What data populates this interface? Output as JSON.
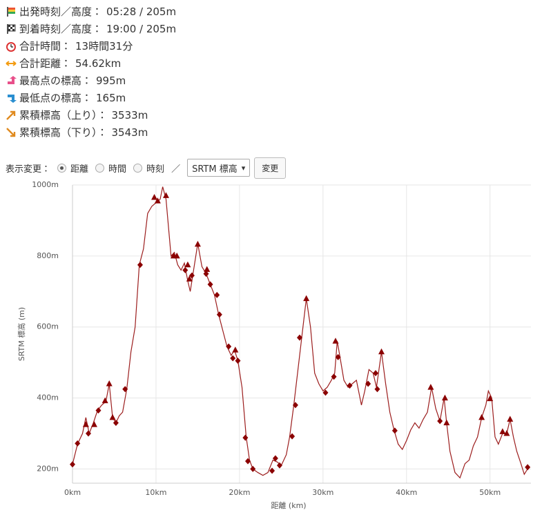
{
  "info": [
    {
      "label": "出発時刻／高度：",
      "value": "05:28 / 205m"
    },
    {
      "label": "到着時刻／高度：",
      "value": "19:00 / 205m"
    },
    {
      "label": "合計時間：",
      "value": "13時間31分"
    },
    {
      "label": "合計距離：",
      "value": "54.62km"
    },
    {
      "label": "最高点の標高：",
      "value": "995m"
    },
    {
      "label": "最低点の標高：",
      "value": "165m"
    },
    {
      "label": "累積標高（上り）：",
      "value": "3533m"
    },
    {
      "label": "累積標高（下り）：",
      "value": "3543m"
    }
  ],
  "controls": {
    "label": "表示変更：",
    "options": [
      "距離",
      "時間",
      "時刻"
    ],
    "separator": "／",
    "select": "SRTM 標高",
    "button": "変更"
  },
  "chart_data": {
    "type": "line",
    "x_label": "距離 (km)",
    "y_label": "SRTM 標高 (m)",
    "color": "#9b1c1c",
    "marker_color": "#8b0000",
    "grid": true,
    "xlim": [
      0,
      54.9
    ],
    "ylim": [
      160,
      1000
    ],
    "xticks": [
      {
        "value": 0,
        "label": "0km"
      },
      {
        "value": 10,
        "label": "10km"
      },
      {
        "value": 20,
        "label": "20km"
      },
      {
        "value": 30,
        "label": "30km"
      },
      {
        "value": 40,
        "label": "40km"
      },
      {
        "value": 50,
        "label": "50km"
      }
    ],
    "yticks": [
      {
        "value": 200,
        "label": "200m"
      },
      {
        "value": 400,
        "label": "400m"
      },
      {
        "value": 600,
        "label": "600m"
      },
      {
        "value": 800,
        "label": "800m"
      },
      {
        "value": 1000,
        "label": "1000m"
      }
    ],
    "x": [
      0,
      0.6,
      1.2,
      1.6,
      2,
      2.5,
      3,
      3.5,
      4,
      4.4,
      4.8,
      5.2,
      5.6,
      6,
      6.5,
      7,
      7.5,
      8,
      8.5,
      9,
      9.5,
      10,
      10.5,
      10.8,
      11.2,
      11.5,
      11.8,
      12.2,
      12.6,
      13,
      13.4,
      13.8,
      14.1,
      14.5,
      15,
      15.5,
      16,
      16.5,
      17,
      17.5,
      18,
      18.5,
      19,
      19.4,
      19.8,
      20.3,
      20.8,
      21.2,
      21.6,
      22.2,
      22.8,
      23.4,
      24,
      24.5,
      25,
      25.6,
      26,
      26.5,
      27,
      27.5,
      28,
      28.5,
      29,
      29.5,
      30,
      30.5,
      31,
      31.4,
      31.7,
      32,
      32.5,
      33,
      33.5,
      34,
      34.6,
      35,
      35.5,
      36,
      36.4,
      37,
      37.5,
      38,
      38.5,
      39,
      39.5,
      40,
      40.5,
      41,
      41.5,
      42,
      42.5,
      43,
      43.5,
      44,
      44.5,
      44.8,
      45.2,
      45.8,
      46.4,
      47,
      47.5,
      48,
      48.5,
      49,
      49.5,
      49.8,
      50.2,
      50.6,
      51,
      51.5,
      52,
      52.4,
      52.8,
      53.2,
      53.7,
      54.1,
      54.62
    ],
    "values": [
      213,
      270,
      300,
      345,
      300,
      330,
      365,
      380,
      390,
      440,
      345,
      330,
      350,
      360,
      425,
      530,
      600,
      775,
      820,
      920,
      940,
      950,
      960,
      995,
      960,
      880,
      800,
      810,
      775,
      760,
      780,
      730,
      700,
      760,
      835,
      770,
      750,
      720,
      690,
      635,
      590,
      545,
      520,
      535,
      505,
      430,
      290,
      225,
      200,
      190,
      182,
      190,
      225,
      220,
      210,
      240,
      290,
      380,
      480,
      580,
      680,
      600,
      470,
      440,
      420,
      430,
      450,
      470,
      560,
      520,
      450,
      430,
      440,
      450,
      380,
      420,
      480,
      470,
      430,
      530,
      440,
      360,
      310,
      270,
      255,
      280,
      310,
      330,
      315,
      340,
      360,
      430,
      370,
      335,
      400,
      330,
      250,
      190,
      175,
      215,
      225,
      265,
      290,
      345,
      380,
      420,
      400,
      290,
      270,
      300,
      300,
      340,
      290,
      250,
      215,
      185,
      205
    ],
    "diamond_markers": {
      "x": [
        0,
        0.6,
        1.9,
        3.1,
        5.2,
        6.3,
        8.1,
        13.5,
        14.3,
        16,
        16.5,
        17.3,
        17.6,
        18.7,
        19.2,
        19.8,
        20.7,
        21,
        21.6,
        23.9,
        24.3,
        24.8,
        26.3,
        26.7,
        27.2,
        30.3,
        31.3,
        31.8,
        33.2,
        35.4,
        36.3,
        36.5,
        38.6,
        44,
        54.5
      ],
      "values": [
        213,
        272,
        300,
        365,
        330,
        425,
        775,
        760,
        745,
        750,
        720,
        690,
        635,
        545,
        512,
        505,
        288,
        222,
        200,
        195,
        230,
        210,
        292,
        380,
        570,
        415,
        460,
        515,
        435,
        440,
        470,
        425,
        308,
        335,
        205
      ]
    },
    "triangle_markers": {
      "x": [
        1.6,
        2.6,
        3.9,
        4.4,
        4.8,
        9.8,
        10.2,
        11.2,
        12.1,
        12.5,
        13.8,
        14,
        15,
        16.1,
        19.5,
        28,
        31.5,
        37,
        42.9,
        44.6,
        44.8,
        49,
        50,
        51.5,
        52,
        52.4
      ],
      "values": [
        325,
        325,
        392,
        440,
        345,
        965,
        955,
        970,
        800,
        800,
        775,
        735,
        833,
        762,
        535,
        680,
        560,
        530,
        430,
        400,
        330,
        345,
        398,
        305,
        300,
        340
      ]
    }
  }
}
